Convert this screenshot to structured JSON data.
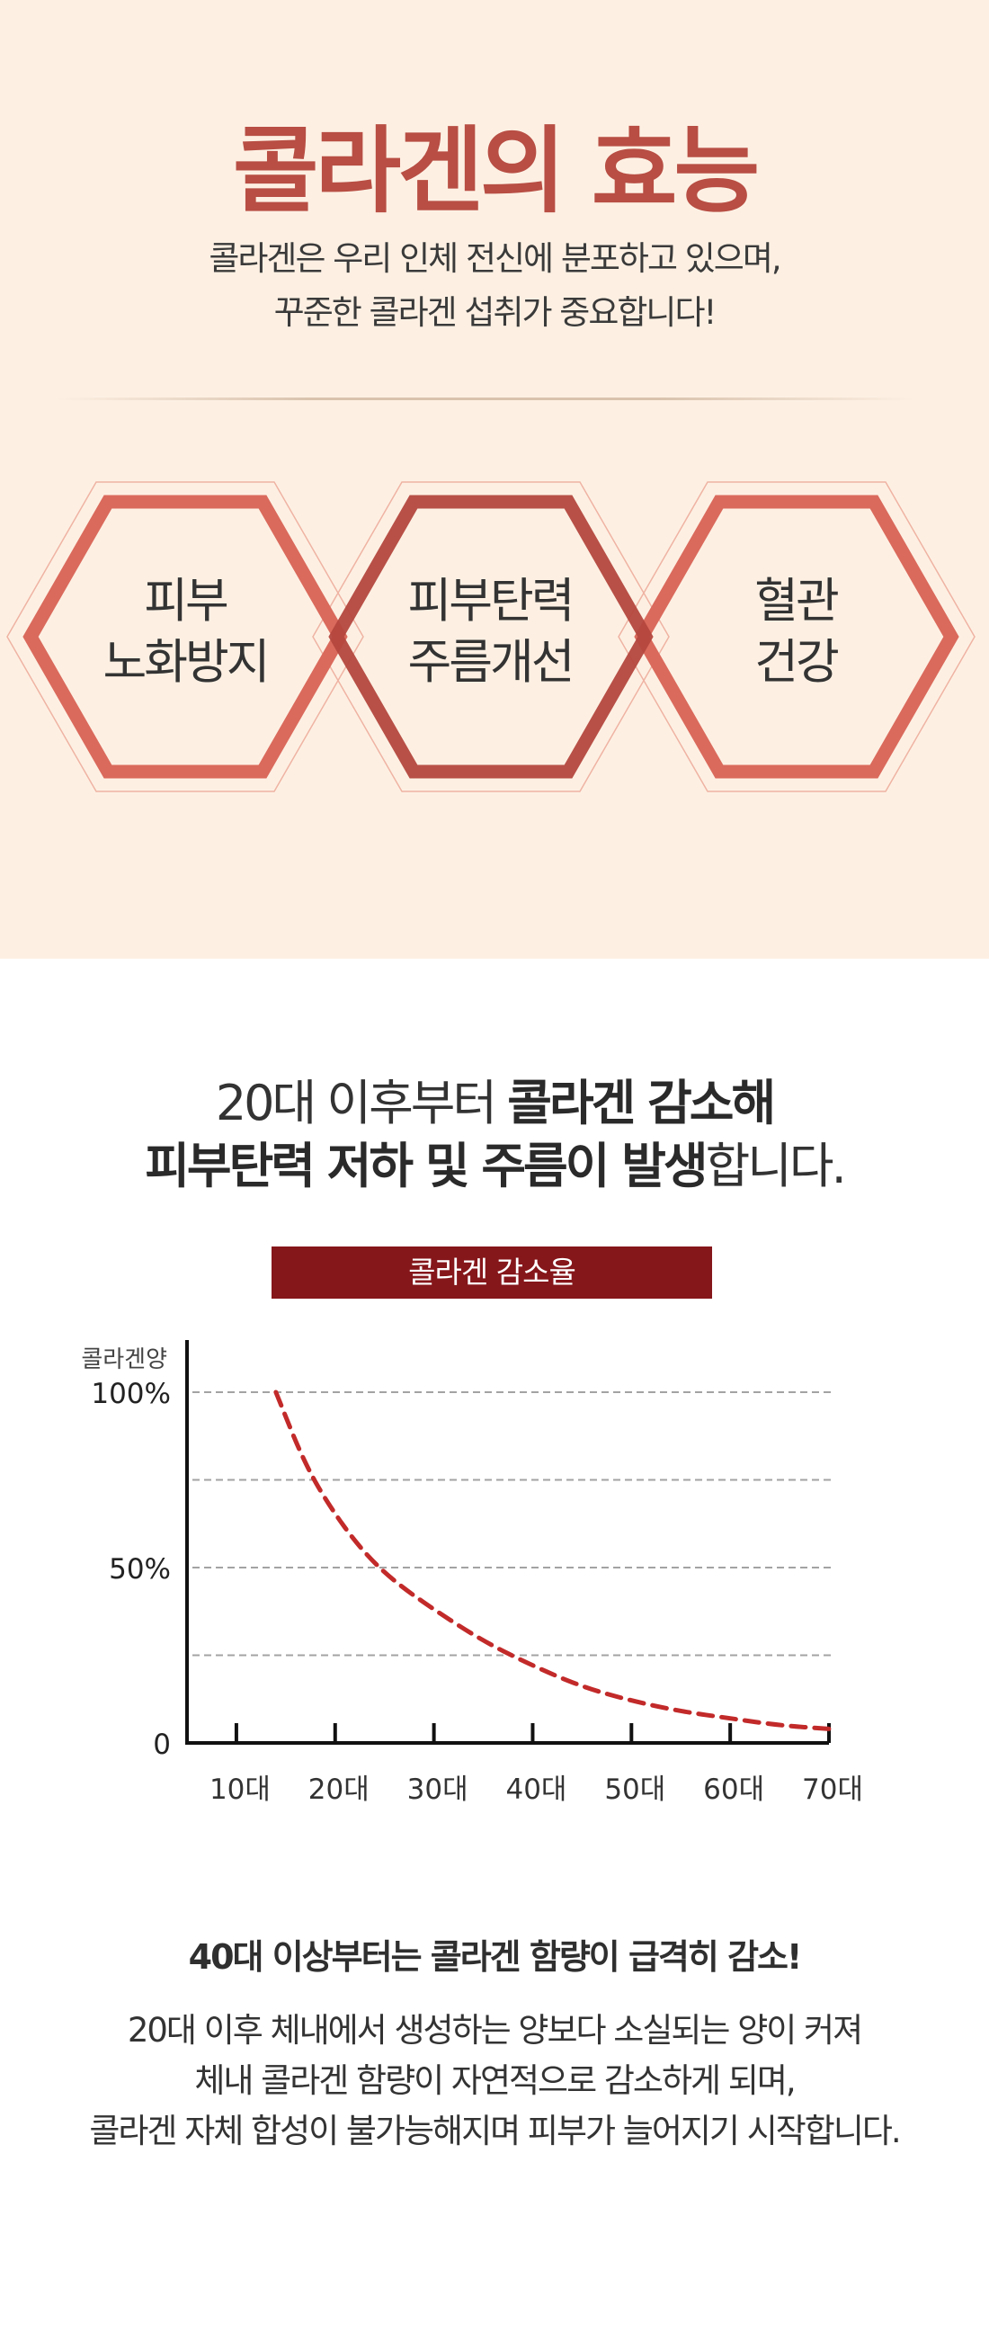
{
  "header": {
    "title": "콜라겐의 효능",
    "subtitle_lines": [
      "콜라겐은 우리 인체 전신에 분포하고 있으며,",
      "꾸준한 콜라겐 섭취가 중요합니다!"
    ]
  },
  "benefits": [
    {
      "lines": [
        "피부",
        "노화방지"
      ]
    },
    {
      "lines": [
        "피부탄력",
        "주름개선"
      ]
    },
    {
      "lines": [
        "혈관",
        "건강"
      ]
    }
  ],
  "headline": {
    "line1_normal": "20대 이후부터 ",
    "line1_bold": "콜라겐 감소해",
    "line2_bold": "피부탄력 저하 및 주름이 발생",
    "line2_normal": "합니다."
  },
  "colors": {
    "background_top": "#fdf0e3",
    "title": "#b84e44",
    "hex_light": "#da6a5c",
    "hex_dark": "#b4473e",
    "chart_title_bar": "#85161a",
    "chart_curve": "#c22a2a",
    "highlight": "#fbd5bc"
  },
  "chart_data": {
    "type": "line",
    "title": "콜라겐 감소율",
    "ylabel": "콜라겐양",
    "y_tick_labels": [
      "100%",
      "50%",
      "0"
    ],
    "x_tick_labels": [
      "10대",
      "20대",
      "30대",
      "40대",
      "50대",
      "60대",
      "70대"
    ],
    "ylim": [
      0,
      100
    ],
    "xlim": [
      5,
      70
    ],
    "grid": {
      "y_dashed_at": [
        25,
        50,
        75,
        100
      ]
    },
    "series": [
      {
        "style": "dashed",
        "x": [
          14,
          17,
          20,
          23,
          26,
          30,
          35,
          40,
          45,
          50,
          55,
          60,
          65,
          70
        ],
        "y": [
          100,
          79,
          65,
          54,
          46,
          38,
          29,
          22,
          16,
          12,
          9,
          7,
          5,
          4
        ]
      }
    ]
  },
  "emphasis": {
    "headline": "40대 이상부터는 콜라겐 함량이 급격히 감소!",
    "lines": [
      "20대 이후 체내에서 생성하는 양보다 소실되는 양이 커져",
      "체내 콜라겐 함량이 자연적으로 감소하게 되며,",
      "콜라겐 자체 합성이 불가능해지며 피부가 늘어지기 시작합니다."
    ]
  }
}
